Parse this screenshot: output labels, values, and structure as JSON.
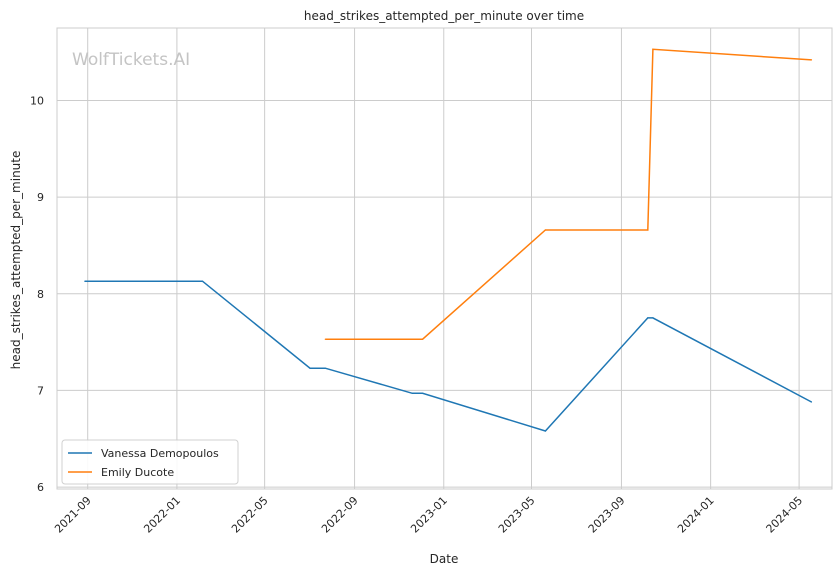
{
  "chart_data": {
    "type": "line",
    "title": "head_strikes_attempted_per_minute over time",
    "xlabel": "Date",
    "ylabel": "head_strikes_attempted_per_minute",
    "watermark": "WolfTickets.AI",
    "x_ticks": [
      "2021-09",
      "2022-01",
      "2022-05",
      "2022-09",
      "2023-01",
      "2023-05",
      "2023-09",
      "2024-01",
      "2024-05"
    ],
    "y_ticks": [
      "6",
      "7",
      "8",
      "9",
      "10"
    ],
    "xlim": [
      "2021-07-21",
      "2024-06-15"
    ],
    "ylim": [
      5.98,
      10.75
    ],
    "grid": true,
    "legend_position": "lower-left",
    "series": [
      {
        "name": "Vanessa Demopoulos",
        "color": "#1f77b4",
        "points": [
          [
            "2021-08-28",
            8.13
          ],
          [
            "2022-02-05",
            8.13
          ],
          [
            "2022-07-02",
            7.23
          ],
          [
            "2022-07-23",
            7.23
          ],
          [
            "2022-11-19",
            6.97
          ],
          [
            "2022-12-03",
            6.97
          ],
          [
            "2023-05-20",
            6.58
          ],
          [
            "2023-10-07",
            7.75
          ],
          [
            "2023-10-14",
            7.75
          ],
          [
            "2024-05-18",
            6.88
          ]
        ]
      },
      {
        "name": "Emily Ducote",
        "color": "#ff7f0e",
        "points": [
          [
            "2022-07-23",
            7.53
          ],
          [
            "2022-12-03",
            7.53
          ],
          [
            "2023-05-20",
            8.66
          ],
          [
            "2023-10-07",
            8.66
          ],
          [
            "2023-10-14",
            10.53
          ],
          [
            "2024-05-18",
            10.42
          ]
        ]
      }
    ]
  }
}
